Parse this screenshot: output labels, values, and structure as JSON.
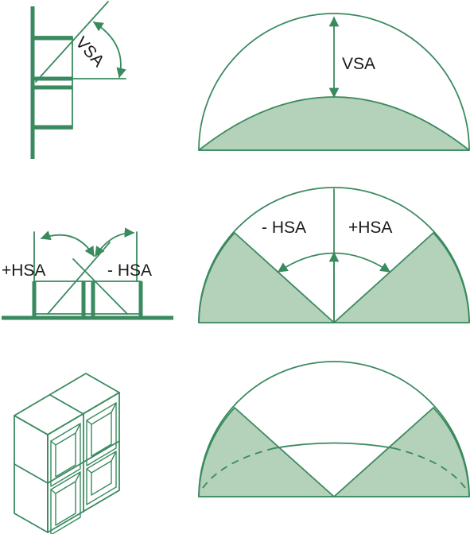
{
  "colors": {
    "line": "#3a8a5f",
    "shade": "#b4d1b9",
    "text": "#1a1a1a",
    "background": "#ffffff"
  },
  "labels": {
    "vsa_section": "VSA",
    "vsa_dome": "VSA",
    "plus_hsa_plan": "+HSA",
    "minus_hsa_plan": "- HSA",
    "minus_hsa_dome": "- HSA",
    "plus_hsa_dome": "+HSA"
  }
}
